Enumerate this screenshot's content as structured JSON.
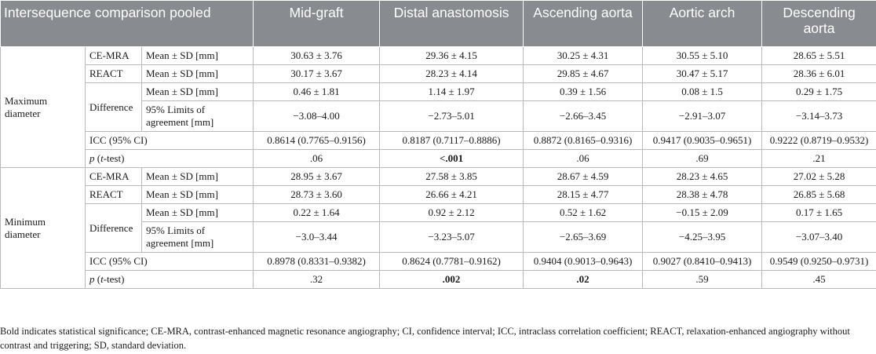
{
  "header": {
    "col0": "Intersequence comparison pooled",
    "columns": [
      "Mid-graft",
      "Distal anastomosis",
      "Ascending aorta",
      "Aortic arch",
      "Descending aorta"
    ]
  },
  "sections": [
    {
      "name": "Maximum diameter",
      "rows": [
        {
          "method": "CE-MRA",
          "stat": "Mean ± SD [mm]",
          "values": [
            "30.63 ± 3.76",
            "29.36 ± 4.15",
            "30.25 ± 4.31",
            "30.55 ± 5.10",
            "28.65 ± 5.51"
          ]
        },
        {
          "method": "REACT",
          "stat": "Mean ± SD [mm]",
          "values": [
            "30.17 ± 3.67",
            "28.23 ± 4.14",
            "29.85 ± 4.67",
            "30.47 ± 5.17",
            "28.36 ± 6.01"
          ]
        },
        {
          "method": "Difference",
          "stat": "Mean ± SD [mm]",
          "values": [
            "0.46 ± 1.81",
            "1.14 ± 1.97",
            "0.39 ± 1.56",
            "0.08 ± 1.5",
            "0.29 ± 1.75"
          ]
        },
        {
          "method": "",
          "stat": "95% Limits of agreement [mm]",
          "values": [
            "−3.08–4.00",
            "−2.73–5.01",
            "−2.66–3.45",
            "−2.91–3.07",
            "−3.14–3.73"
          ]
        }
      ],
      "icc": {
        "label": "ICC (95% CI)",
        "values": [
          "0.8614 (0.7765–0.9156)",
          "0.8187 (0.7117–0.8886)",
          "0.8872 (0.8165–0.9316)",
          "0.9417 (0.9035–0.9651)",
          "0.9222 (0.8719–0.9532)"
        ]
      },
      "p": {
        "label_p": "p",
        "label_rest": " (",
        "label_t": "t",
        "label_end": "-test)",
        "values": [
          ".06",
          "<.001",
          ".06",
          ".69",
          ".21"
        ],
        "bold": [
          false,
          true,
          false,
          false,
          false
        ]
      }
    },
    {
      "name": "Minimum diameter",
      "rows": [
        {
          "method": "CE-MRA",
          "stat": "Mean ± SD [mm]",
          "values": [
            "28.95 ± 3.67",
            "27.58 ± 3.85",
            "28.67 ± 4.59",
            "28.23 ± 4.65",
            "27.02 ± 5.28"
          ]
        },
        {
          "method": "REACT",
          "stat": "Mean ± SD [mm]",
          "values": [
            "28.73 ± 3.60",
            "26.66 ± 4.21",
            "28.15 ± 4.77",
            "28.38 ± 4.78",
            "26.85 ± 5.68"
          ]
        },
        {
          "method": "Difference",
          "stat": "Mean ± SD [mm]",
          "values": [
            "0.22 ± 1.64",
            "0.92 ± 2.12",
            "0.52 ± 1.62",
            "−0.15 ± 2.09",
            "0.17 ± 1.65"
          ]
        },
        {
          "method": "",
          "stat": "95% Limits of agreement [mm]",
          "values": [
            "−3.0–3.44",
            "−3.23–5.07",
            "−2.65–3.69",
            "−4.25–3.95",
            "−3.07–3.40"
          ]
        }
      ],
      "icc": {
        "label": "ICC (95% CI)",
        "values": [
          "0.8978 (0.8331–0.9382)",
          "0.8624 (0.7781–0.9162)",
          "0.9404 (0.9013–0.9643)",
          "0.9027 (0.8410–0.9413)",
          "0.9549 (0.9250–0.9731)"
        ]
      },
      "p": {
        "label_p": "p",
        "label_rest": " (",
        "label_t": "t",
        "label_end": "-test)",
        "values": [
          ".32",
          ".002",
          ".02",
          ".59",
          ".45"
        ],
        "bold": [
          false,
          true,
          true,
          false,
          false
        ]
      }
    }
  ],
  "footnote": "Bold indicates statistical significance; CE-MRA, contrast-enhanced magnetic resonance angiography; CI, confidence interval; ICC, intraclass correlation coefficient; REACT, relaxation-enhanced angiography without contrast and triggering; SD, standard deviation."
}
